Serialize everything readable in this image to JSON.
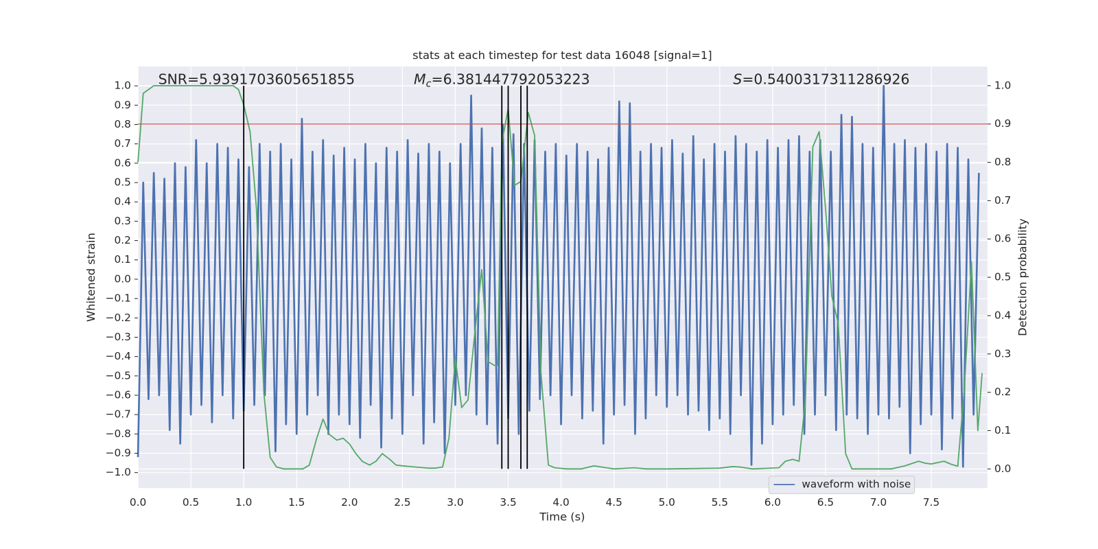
{
  "chart_data": {
    "type": "line",
    "title": "stats at each timestep for test data 16048 [signal=1]",
    "xlabel": "Time (s)",
    "ylabel": "Whitened strain",
    "y2label": "Detection probability",
    "annotations": [
      {
        "text": "SNR=5.9391703605651855"
      },
      {
        "symbol": "M",
        "subscript": "c",
        "text": "=6.381447792053223"
      },
      {
        "symbol": "S",
        "text": "=0.5400317311286926"
      }
    ],
    "xlim": [
      0,
      8.03
    ],
    "ylim": [
      -1.08,
      1.1
    ],
    "y2lim": [
      -0.05,
      1.05
    ],
    "grid": true,
    "legend": "lower right",
    "xticks": [
      {
        "value": 0,
        "label": "0.0"
      },
      0.5,
      {
        "value": 1,
        "label": "1.0"
      },
      1.5,
      {
        "value": 2,
        "label": "2.0"
      },
      2.5,
      {
        "value": 3,
        "label": "3.0"
      },
      3.5,
      {
        "value": 4,
        "label": "4.0"
      },
      4.5,
      {
        "value": 5,
        "label": "5.0"
      },
      5.5,
      {
        "value": 6,
        "label": "6.0"
      },
      6.5,
      {
        "value": 7,
        "label": "7.0"
      },
      7.5
    ],
    "yticks": [
      {
        "value": -1,
        "label": "−1.0"
      },
      {
        "value": -0.9,
        "label": "−0.9"
      },
      {
        "value": -0.8,
        "label": "−0.8"
      },
      {
        "value": -0.7,
        "label": "−0.7"
      },
      {
        "value": -0.6,
        "label": "−0.6"
      },
      {
        "value": -0.5,
        "label": "−0.5"
      },
      {
        "value": -0.4,
        "label": "−0.4"
      },
      {
        "value": -0.3,
        "label": "−0.3"
      },
      {
        "value": -0.2,
        "label": "−0.2"
      },
      {
        "value": -0.1,
        "label": "−0.1"
      },
      {
        "value": 0,
        "label": "0.0"
      },
      0.1,
      0.2,
      0.3,
      0.4,
      0.5,
      0.6,
      0.7,
      0.8,
      0.9,
      {
        "value": 1,
        "label": "1.0"
      }
    ],
    "y2ticks": [
      {
        "value": 0,
        "label": "0.0"
      },
      0.1,
      0.2,
      0.3,
      0.4,
      0.5,
      0.6,
      0.7,
      0.8,
      0.9,
      {
        "value": 1,
        "label": "1.0"
      }
    ],
    "threshold": {
      "value": 0.9,
      "axis": "y2",
      "color": "#c44e52"
    },
    "vlines": {
      "x": [
        1.0,
        3.44,
        3.5,
        3.62,
        3.68
      ],
      "color": "#000000"
    },
    "series": [
      {
        "name": "waveform with noise",
        "color": "#4c72b0",
        "x": [
          0,
          0.05,
          0.1,
          0.15,
          0.2,
          0.25,
          0.3,
          0.35,
          0.4,
          0.45,
          0.5,
          0.55,
          0.6,
          0.65,
          0.7,
          0.75,
          0.8,
          0.85,
          0.9,
          0.95,
          1,
          1.05,
          1.1,
          1.15,
          1.2,
          1.25,
          1.3,
          1.35,
          1.4,
          1.45,
          1.5,
          1.55,
          1.6,
          1.65,
          1.7,
          1.75,
          1.8,
          1.85,
          1.9,
          1.95,
          2,
          2.05,
          2.1,
          2.15,
          2.2,
          2.25,
          2.3,
          2.35,
          2.4,
          2.45,
          2.5,
          2.55,
          2.6,
          2.65,
          2.7,
          2.75,
          2.8,
          2.85,
          2.9,
          2.95,
          3,
          3.05,
          3.1,
          3.15,
          3.2,
          3.25,
          3.3,
          3.35,
          3.4,
          3.45,
          3.5,
          3.55,
          3.6,
          3.65,
          3.7,
          3.75,
          3.8,
          3.85,
          3.9,
          3.95,
          4,
          4.05,
          4.1,
          4.15,
          4.2,
          4.25,
          4.3,
          4.35,
          4.4,
          4.45,
          4.5,
          4.55,
          4.6,
          4.65,
          4.7,
          4.75,
          4.8,
          4.85,
          4.9,
          4.95,
          5,
          5.05,
          5.1,
          5.15,
          5.2,
          5.25,
          5.3,
          5.35,
          5.4,
          5.45,
          5.5,
          5.55,
          5.6,
          5.65,
          5.7,
          5.75,
          5.8,
          5.85,
          5.9,
          5.95,
          6,
          6.05,
          6.1,
          6.15,
          6.2,
          6.25,
          6.3,
          6.35,
          6.4,
          6.45,
          6.5,
          6.55,
          6.6,
          6.65,
          6.7,
          6.75,
          6.8,
          6.85,
          6.9,
          6.95,
          7,
          7.05,
          7.1,
          7.15,
          7.2,
          7.25,
          7.3,
          7.35,
          7.4,
          7.45,
          7.5,
          7.55,
          7.6,
          7.65,
          7.7,
          7.75,
          7.8,
          7.85,
          7.9,
          7.95
        ],
        "values": [
          -0.92,
          0.5,
          -0.62,
          0.55,
          -0.6,
          0.52,
          -0.78,
          0.6,
          -0.85,
          0.58,
          -0.7,
          0.72,
          -0.65,
          0.6,
          -0.74,
          0.7,
          -0.6,
          0.68,
          -0.72,
          0.62,
          -0.68,
          0.58,
          -0.65,
          0.7,
          -0.6,
          0.66,
          -0.89,
          0.7,
          -0.75,
          0.62,
          -0.8,
          0.83,
          -0.7,
          0.66,
          -0.6,
          0.72,
          -0.8,
          0.64,
          -0.7,
          0.68,
          -0.75,
          0.62,
          -0.82,
          0.7,
          -0.65,
          0.6,
          -0.87,
          0.68,
          -0.72,
          0.66,
          -0.8,
          0.72,
          -0.6,
          0.65,
          -0.85,
          0.7,
          -0.74,
          0.66,
          -0.9,
          0.6,
          -0.65,
          0.7,
          -0.6,
          0.95,
          -0.7,
          0.78,
          -0.75,
          0.68,
          -0.85,
          0.8,
          -0.72,
          0.75,
          -0.8,
          0.7,
          -0.68,
          0.72,
          -0.62,
          0.66,
          -0.6,
          0.7,
          -0.75,
          0.64,
          -0.6,
          0.7,
          -0.72,
          0.66,
          -0.68,
          0.62,
          -0.85,
          0.68,
          -0.7,
          0.92,
          -0.65,
          0.91,
          -0.8,
          0.66,
          -0.72,
          0.7,
          -0.6,
          0.68,
          -0.66,
          0.72,
          -0.6,
          0.65,
          -0.7,
          0.74,
          -0.68,
          0.62,
          -0.78,
          0.7,
          -0.72,
          0.66,
          -0.8,
          0.74,
          -0.6,
          0.7,
          -0.96,
          0.66,
          -0.85,
          0.72,
          -0.75,
          0.68,
          -0.7,
          0.72,
          -0.65,
          0.74,
          -0.8,
          0.66,
          -0.7,
          0.72,
          -0.6,
          0.66,
          -0.78,
          0.85,
          -0.7,
          0.84,
          -0.72,
          0.7,
          -0.8,
          0.68,
          -0.7,
          1.0,
          -0.72,
          0.7,
          -0.66,
          0.72,
          -0.9,
          0.68,
          -0.75,
          0.7,
          -0.7,
          0.66,
          -0.88,
          0.7,
          -0.72,
          0.68,
          -0.97,
          0.62,
          -0.7,
          0.55
        ]
      },
      {
        "color": "#55a868",
        "axis": "y2",
        "x": [
          0,
          0.05,
          0.15,
          0.9,
          0.95,
          1,
          1.06,
          1.12,
          1.19,
          1.25,
          1.31,
          1.38,
          1.56,
          1.62,
          1.69,
          1.75,
          1.81,
          1.88,
          1.94,
          2,
          2.06,
          2.12,
          2.19,
          2.25,
          2.31,
          2.38,
          2.44,
          2.5,
          2.62,
          2.75,
          2.81,
          2.88,
          2.94,
          3,
          3.06,
          3.12,
          3.19,
          3.25,
          3.31,
          3.37,
          3.4,
          3.44,
          3.5,
          3.56,
          3.62,
          3.69,
          3.75,
          3.81,
          3.88,
          3.94,
          4.06,
          4.19,
          4.31,
          4.38,
          4.5,
          4.69,
          4.81,
          5,
          5.5,
          5.62,
          5.69,
          5.81,
          6.06,
          6.12,
          6.19,
          6.25,
          6.31,
          6.38,
          6.44,
          6.5,
          6.56,
          6.62,
          6.69,
          6.75,
          6.88,
          7.12,
          7.25,
          7.38,
          7.44,
          7.5,
          7.62,
          7.69,
          7.75,
          7.81,
          7.88,
          7.94,
          7.98
        ],
        "values": [
          0.8,
          0.98,
          1.0,
          1.0,
          0.99,
          0.95,
          0.88,
          0.68,
          0.2,
          0.03,
          0.005,
          0.0,
          0.0,
          0.01,
          0.08,
          0.13,
          0.09,
          0.075,
          0.08,
          0.065,
          0.04,
          0.02,
          0.01,
          0.02,
          0.04,
          0.025,
          0.01,
          0.008,
          0.005,
          0.002,
          0.002,
          0.005,
          0.08,
          0.29,
          0.16,
          0.18,
          0.37,
          0.52,
          0.28,
          0.27,
          0.27,
          0.85,
          0.94,
          0.74,
          0.75,
          0.93,
          0.87,
          0.25,
          0.01,
          0.003,
          0.0,
          0.0,
          0.008,
          0.005,
          0.0,
          0.003,
          0.0,
          0.0,
          0.002,
          0.006,
          0.005,
          0.0,
          0.003,
          0.02,
          0.025,
          0.02,
          0.18,
          0.84,
          0.88,
          0.68,
          0.45,
          0.38,
          0.04,
          0.0,
          0.0,
          0.0,
          0.008,
          0.02,
          0.015,
          0.013,
          0.02,
          0.012,
          0.007,
          0.2,
          0.54,
          0.1,
          0.25
        ]
      }
    ]
  }
}
